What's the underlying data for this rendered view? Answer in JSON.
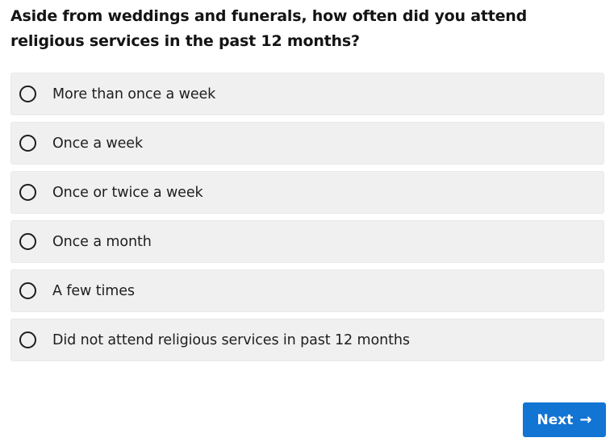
{
  "question": {
    "text": "Aside from weddings and funerals, how often did you attend religious services in the past 12 months?"
  },
  "options": [
    {
      "label": "More than once a week",
      "selected": false
    },
    {
      "label": "Once a week",
      "selected": false
    },
    {
      "label": "Once or twice a week",
      "selected": false
    },
    {
      "label": "Once a month",
      "selected": false
    },
    {
      "label": "A few times",
      "selected": false
    },
    {
      "label": "Did not attend religious services in past 12 months",
      "selected": false
    }
  ],
  "next_button": {
    "label": "Next",
    "arrow": "→",
    "icon": "arrow-right-icon"
  },
  "colors": {
    "accent": "#1274d3",
    "option_background": "#f0f0f0",
    "text": "#1a1a1a"
  }
}
